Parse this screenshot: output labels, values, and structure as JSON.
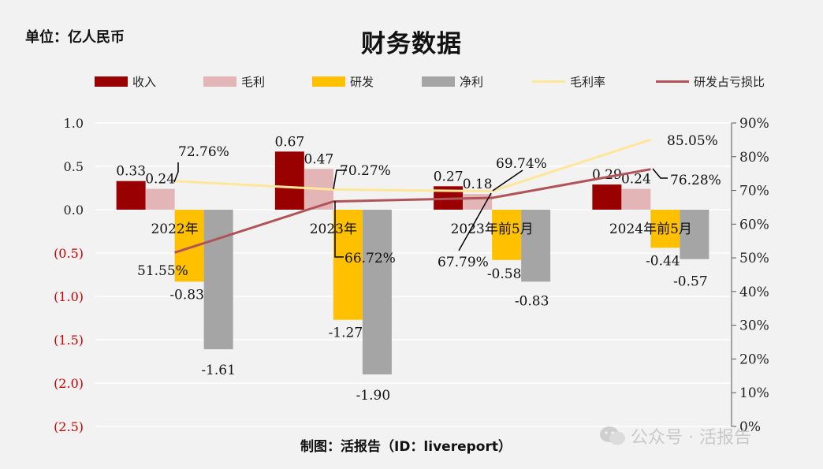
{
  "unit_label": "单位：亿人民币",
  "title": "财务数据",
  "credit": "制图：活报告（ID：livereport）",
  "watermark": "公众号 · 活报告",
  "chart_data": {
    "type": "bar",
    "categories": [
      "2022年",
      "2023年",
      "2023年前5月",
      "2024年前5月"
    ],
    "series": [
      {
        "name": "收入",
        "kind": "bar",
        "color": "#990000",
        "values": [
          0.33,
          0.67,
          0.27,
          0.29
        ],
        "labels": [
          "0.33",
          "0.67",
          "0.27",
          "0.29"
        ]
      },
      {
        "name": "毛利",
        "kind": "bar",
        "color": "#e3b5b6",
        "values": [
          0.24,
          0.47,
          0.18,
          0.24
        ],
        "labels": [
          "0.24",
          "0.47",
          "0.18",
          "0.24"
        ]
      },
      {
        "name": "研发",
        "kind": "bar",
        "color": "#ffc000",
        "values": [
          -0.83,
          -1.27,
          -0.58,
          -0.44
        ],
        "labels": [
          "-0.83",
          "-1.27",
          "-0.58",
          "-0.44"
        ]
      },
      {
        "name": "净利",
        "kind": "bar",
        "color": "#a5a5a5",
        "values": [
          -1.61,
          -1.9,
          -0.83,
          -0.57
        ],
        "labels": [
          "-1.61",
          "-1.90",
          "-0.83",
          "-0.57"
        ]
      },
      {
        "name": "毛利率",
        "kind": "line",
        "axis": "right",
        "color": "#ffe699",
        "values": [
          72.76,
          70.27,
          69.74,
          85.05
        ],
        "labels": [
          "72.76%",
          "70.27%",
          "69.74%",
          "85.05%"
        ]
      },
      {
        "name": "研发占亏损比",
        "kind": "line",
        "axis": "right",
        "color": "#b0545a",
        "values": [
          51.55,
          66.72,
          67.79,
          76.28
        ],
        "labels": [
          "51.55%",
          "66.72%",
          "67.79%",
          "76.28%"
        ]
      }
    ],
    "ylim_left": [
      -2.5,
      1.0
    ],
    "ylim_right": [
      0,
      90
    ],
    "left_ticks": [
      "1.0",
      "0.5",
      "0.0",
      "(0.5)",
      "(1.0)",
      "(1.5)",
      "(2.0)",
      "(2.5)"
    ],
    "right_ticks": [
      "90%",
      "80%",
      "70%",
      "60%",
      "50%",
      "40%",
      "30%",
      "20%",
      "10%",
      "0%"
    ],
    "negative_tick_color": "#cc0000",
    "grid": true,
    "legend_position": "top"
  }
}
